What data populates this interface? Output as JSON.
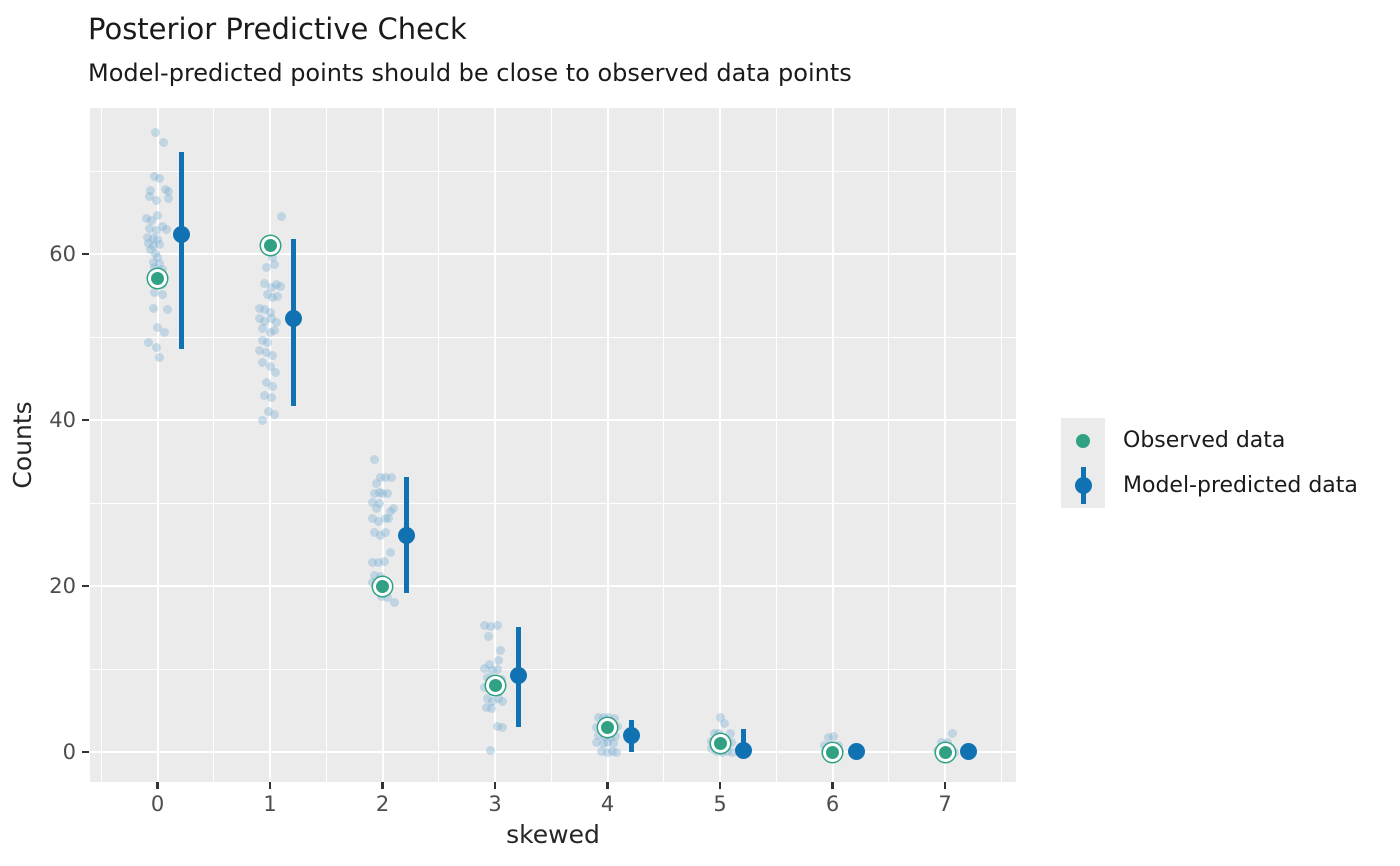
{
  "header": {
    "title": "Posterior Predictive Check",
    "subtitle": "Model-predicted points should be close to observed data points"
  },
  "legend": {
    "position": "right",
    "items": [
      {
        "label": "Observed data",
        "marker": "observed-dot"
      },
      {
        "label": "Model-predicted data",
        "marker": "predicted-dot-with-interval"
      }
    ]
  },
  "chart_data": {
    "type": "scatter",
    "title": "Posterior Predictive Check",
    "subtitle": "Model-predicted points should be close to observed data points",
    "xlabel": "skewed",
    "ylabel": "Counts",
    "xlim": [
      -0.6,
      7.63
    ],
    "ylim": [
      -3.6,
      77.6
    ],
    "x_ticks": [
      0,
      1,
      2,
      3,
      4,
      5,
      6,
      7
    ],
    "y_ticks": [
      0,
      20,
      40,
      60
    ],
    "x_minor_gridlines": [
      -0.5,
      0.5,
      1.5,
      2.5,
      3.5,
      4.5,
      5.5,
      6.5,
      7.5
    ],
    "y_minor_gridlines": [
      10,
      30,
      50,
      70
    ],
    "grid": true,
    "panel_background": "#ebebeb",
    "colors": {
      "observed": "#31a183",
      "observed_ring": "#ffffff",
      "predicted": "#1072b2",
      "posterior_draws": "#7fb1d4",
      "posterior_draws_opacity": 0.4,
      "gridline": "#ffffff",
      "panel": "#ebebeb",
      "tick_label": "#4d4d4d",
      "axis_title": "#262626",
      "title_text": "#1a1a1a"
    },
    "series": {
      "observed": {
        "name": "Observed data",
        "x": [
          0,
          1,
          2,
          3,
          4,
          5,
          6,
          7
        ],
        "y": [
          57,
          61,
          20,
          8,
          3,
          1,
          0,
          0
        ]
      },
      "predicted": {
        "name": "Model-predicted data",
        "x_offset": 0.21,
        "x": [
          0,
          1,
          2,
          3,
          4,
          5,
          6,
          7
        ],
        "y": [
          62.3,
          52.3,
          26.1,
          9.2,
          2.0,
          0.2,
          0.1,
          0.1
        ],
        "ci_low": [
          48.6,
          41.7,
          19.2,
          3.0,
          0.0,
          0.0,
          0.0,
          0.0
        ],
        "ci_high": [
          72.3,
          61.8,
          33.1,
          15.1,
          3.9,
          2.8,
          0.6,
          0.6
        ]
      },
      "posterior_draws": {
        "name": "Posterior predictive draws",
        "groups": [
          {
            "x": 0,
            "points": [
              [
                -0.02,
                74.6
              ],
              [
                0.05,
                73.4
              ],
              [
                -0.03,
                69.4
              ],
              [
                0.02,
                69.1
              ],
              [
                -0.06,
                67.7
              ],
              [
                0.07,
                67.8
              ],
              [
                0.1,
                67.5
              ],
              [
                -0.07,
                66.9
              ],
              [
                -0.01,
                66.5
              ],
              [
                0.1,
                66.7
              ],
              [
                -0.1,
                64.3
              ],
              [
                -0.05,
                64.1
              ],
              [
                0,
                64.6
              ],
              [
                -0.07,
                63.1
              ],
              [
                -0.01,
                62.9
              ],
              [
                0.04,
                63.3
              ],
              [
                0.08,
                63
              ],
              [
                -0.09,
                62
              ],
              [
                -0.04,
                61.9
              ],
              [
                0,
                61.7
              ],
              [
                -0.08,
                61.3
              ],
              [
                -0.04,
                61
              ],
              [
                0.02,
                61.1
              ],
              [
                -0.06,
                60.5
              ],
              [
                -0.02,
                60.1
              ],
              [
                0,
                59.6
              ],
              [
                -0.04,
                59
              ],
              [
                0.02,
                58.9
              ],
              [
                -0.03,
                58.4
              ],
              [
                0.04,
                58.2
              ],
              [
                -0.04,
                57.7
              ],
              [
                0.02,
                57.5
              ],
              [
                -0.01,
                56.6
              ],
              [
                0.04,
                56.3
              ],
              [
                -0.03,
                55.4
              ],
              [
                0.04,
                55.1
              ],
              [
                -0.04,
                53.4
              ],
              [
                0.09,
                53.3
              ],
              [
                0,
                51.1
              ],
              [
                0.06,
                50.5
              ],
              [
                -0.08,
                49.3
              ],
              [
                -0.01,
                48.8
              ],
              [
                0.02,
                47.5
              ]
            ]
          },
          {
            "x": 1,
            "points": [
              [
                0.1,
                64.5
              ],
              [
                0.02,
                59.6
              ],
              [
                -0.03,
                58.4
              ],
              [
                0.04,
                58.7
              ],
              [
                -0.05,
                56.5
              ],
              [
                0.01,
                56
              ],
              [
                0.06,
                56.3
              ],
              [
                0.09,
                56.1
              ],
              [
                -0.02,
                55.1
              ],
              [
                0.02,
                54.8
              ],
              [
                0.07,
                54.9
              ],
              [
                -0.09,
                53.5
              ],
              [
                -0.05,
                53.3
              ],
              [
                0,
                53
              ],
              [
                -0.09,
                52.3
              ],
              [
                -0.05,
                51.9
              ],
              [
                0.01,
                52.2
              ],
              [
                0.06,
                51.8
              ],
              [
                -0.07,
                51
              ],
              [
                0,
                50.6
              ],
              [
                0.04,
                50.8
              ],
              [
                0.2,
                52
              ],
              [
                -0.07,
                49.6
              ],
              [
                -0.02,
                49.4
              ],
              [
                -0.09,
                48.4
              ],
              [
                -0.03,
                48.1
              ],
              [
                0.02,
                47.8
              ],
              [
                -0.07,
                46.9
              ],
              [
                0,
                46.5
              ],
              [
                0.05,
                45.7
              ],
              [
                -0.03,
                44.5
              ],
              [
                0.02,
                44
              ],
              [
                -0.05,
                43
              ],
              [
                0.01,
                42.7
              ],
              [
                -0.01,
                41
              ],
              [
                0.04,
                40.7
              ],
              [
                -0.07,
                40
              ]
            ]
          },
          {
            "x": 2,
            "points": [
              [
                -0.07,
                35.3
              ],
              [
                -0.02,
                33.1
              ],
              [
                0.03,
                33.1
              ],
              [
                0.08,
                33.1
              ],
              [
                -0.05,
                32.4
              ],
              [
                -0.03,
                31.3
              ],
              [
                -0.07,
                31.1
              ],
              [
                0,
                31.2
              ],
              [
                0.04,
                31.1
              ],
              [
                -0.09,
                30.1
              ],
              [
                -0.03,
                30
              ],
              [
                -0.05,
                29.3
              ],
              [
                0.07,
                29
              ],
              [
                0.1,
                29.3
              ],
              [
                -0.09,
                28.1
              ],
              [
                -0.04,
                27.8
              ],
              [
                0.03,
                28.1
              ],
              [
                0.05,
                28.2
              ],
              [
                -0.07,
                26.4
              ],
              [
                -0.02,
                26.1
              ],
              [
                0.03,
                26.4
              ],
              [
                -0.09,
                22.9
              ],
              [
                -0.04,
                22.8
              ],
              [
                0.02,
                23
              ],
              [
                0.07,
                24
              ],
              [
                -0.07,
                21.3
              ],
              [
                -0.02,
                21.2
              ],
              [
                -0.09,
                20.4
              ],
              [
                -0.04,
                20.2
              ],
              [
                0.03,
                20.4
              ],
              [
                -0.01,
                18.7
              ],
              [
                0.04,
                18.6
              ],
              [
                0.11,
                18
              ]
            ]
          },
          {
            "x": 3,
            "points": [
              [
                -0.09,
                15.2
              ],
              [
                -0.04,
                15.1
              ],
              [
                0.02,
                15.2
              ],
              [
                -0.06,
                13.9
              ],
              [
                0.05,
                12.2
              ],
              [
                0.03,
                11
              ],
              [
                -0.05,
                10.6
              ],
              [
                -0.09,
                10.1
              ],
              [
                -0.02,
                9.8
              ],
              [
                0.02,
                9.9
              ],
              [
                -0.07,
                9
              ],
              [
                -0.04,
                8.8
              ],
              [
                0.01,
                8.6
              ],
              [
                0.06,
                8.8
              ],
              [
                -0.09,
                7.8
              ],
              [
                -0.04,
                7.6
              ],
              [
                0.04,
                7.3
              ],
              [
                -0.07,
                6.4
              ],
              [
                -0.02,
                6.1
              ],
              [
                0.03,
                6.4
              ],
              [
                0.07,
                6.1
              ],
              [
                -0.08,
                5.4
              ],
              [
                -0.03,
                5.2
              ],
              [
                0.02,
                3.1
              ],
              [
                0.07,
                3
              ],
              [
                -0.04,
                0.2
              ]
            ]
          },
          {
            "x": 4,
            "points": [
              [
                -0.08,
                4.2
              ],
              [
                -0.04,
                4.2
              ],
              [
                0.01,
                4.2
              ],
              [
                0.06,
                4.1
              ],
              [
                -0.1,
                3
              ],
              [
                0.09,
                3.1
              ],
              [
                -0.08,
                2
              ],
              [
                -0.03,
                1.9
              ],
              [
                0.03,
                1.8
              ],
              [
                0.07,
                1.9
              ],
              [
                -0.1,
                1.1
              ],
              [
                -0.04,
                1
              ],
              [
                0,
                1.1
              ],
              [
                0.05,
                1
              ],
              [
                -0.05,
                0.1
              ],
              [
                0,
                0
              ],
              [
                0.04,
                0.1
              ],
              [
                0.08,
                0
              ]
            ]
          },
          {
            "x": 5,
            "points": [
              [
                0,
                4.2
              ],
              [
                0.04,
                3.5
              ],
              [
                -0.05,
                2.3
              ],
              [
                -0.01,
                2.2
              ],
              [
                0.09,
                2.3
              ],
              [
                -0.08,
                1.3
              ],
              [
                -0.03,
                1.2
              ],
              [
                0.06,
                1.3
              ],
              [
                0.1,
                1.2
              ],
              [
                -0.08,
                0.4
              ],
              [
                -0.03,
                0.1
              ],
              [
                0.02,
                0
              ],
              [
                0.07,
                0.1
              ],
              [
                0.11,
                0
              ]
            ]
          },
          {
            "x": 6,
            "points": [
              [
                -0.04,
                1.8
              ],
              [
                0.01,
                1.9
              ],
              [
                -0.07,
                0.8
              ],
              [
                -0.01,
                0.7
              ],
              [
                0.05,
                0.8
              ],
              [
                -0.06,
                0.1
              ],
              [
                0,
                0
              ],
              [
                0.06,
                0.1
              ]
            ]
          },
          {
            "x": 7,
            "points": [
              [
                0.07,
                2.3
              ],
              [
                -0.03,
                1.2
              ],
              [
                0.02,
                1.1
              ],
              [
                -0.07,
                0.2
              ],
              [
                -0.02,
                0
              ],
              [
                0.03,
                0.2
              ],
              [
                0.08,
                0
              ]
            ]
          }
        ]
      }
    }
  }
}
